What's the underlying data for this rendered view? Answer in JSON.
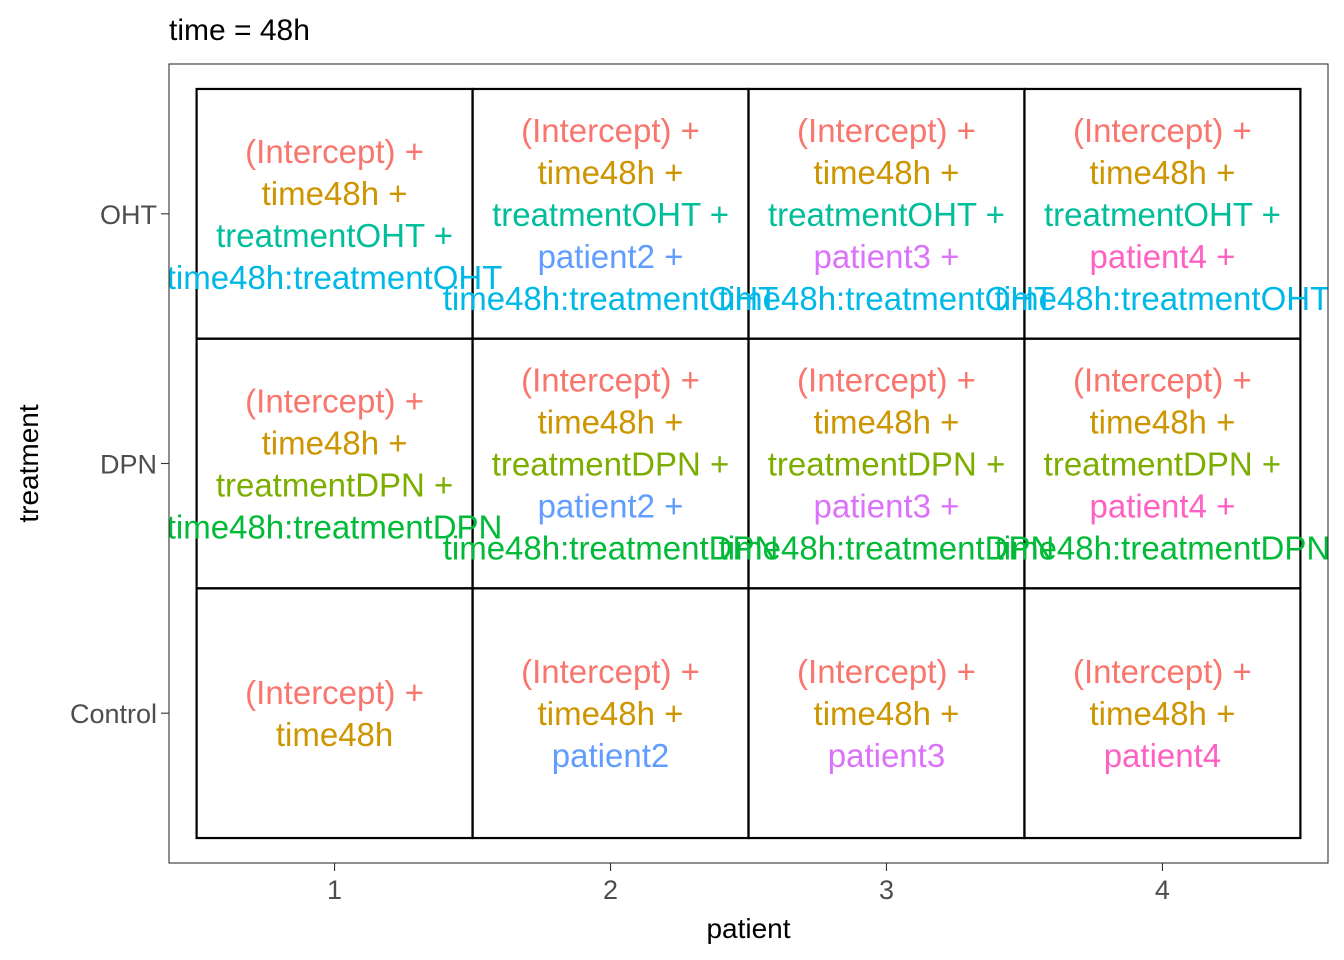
{
  "chart_data": {
    "type": "table",
    "title": "time = 48h",
    "xlabel": "patient",
    "ylabel": "treatment",
    "x_categories": [
      "1",
      "2",
      "3",
      "4"
    ],
    "y_categories": [
      "Control",
      "DPN",
      "OHT"
    ],
    "grid": false,
    "legend": "none",
    "term_colors": {
      "(Intercept)": "#F8766D",
      "time48h": "#CD9600",
      "treatmentOHT": "#00BE9A",
      "treatmentDPN": "#7CAE00",
      "patient2": "#619CFF",
      "patient3": "#DB72FB",
      "patient4": "#FF61C3",
      "time48h:treatmentOHT": "#00B8E7",
      "time48h:treatmentDPN": "#00BA38"
    },
    "cells": [
      {
        "patient": "1",
        "treatment": "OHT",
        "lines": [
          {
            "term": "(Intercept)",
            "text": "(Intercept) +"
          },
          {
            "term": "time48h",
            "text": "time48h +"
          },
          {
            "term": "treatmentOHT",
            "text": "treatmentOHT +"
          },
          {
            "term": "time48h:treatmentOHT",
            "text": "time48h:treatmentOHT"
          }
        ]
      },
      {
        "patient": "2",
        "treatment": "OHT",
        "lines": [
          {
            "term": "(Intercept)",
            "text": "(Intercept) +"
          },
          {
            "term": "time48h",
            "text": "time48h +"
          },
          {
            "term": "treatmentOHT",
            "text": "treatmentOHT +"
          },
          {
            "term": "patient2",
            "text": "patient2 +"
          },
          {
            "term": "time48h:treatmentOHT",
            "text": "time48h:treatmentOHT"
          }
        ]
      },
      {
        "patient": "3",
        "treatment": "OHT",
        "lines": [
          {
            "term": "(Intercept)",
            "text": "(Intercept) +"
          },
          {
            "term": "time48h",
            "text": "time48h +"
          },
          {
            "term": "treatmentOHT",
            "text": "treatmentOHT +"
          },
          {
            "term": "patient3",
            "text": "patient3 +"
          },
          {
            "term": "time48h:treatmentOHT",
            "text": "time48h:treatmentOHT"
          }
        ]
      },
      {
        "patient": "4",
        "treatment": "OHT",
        "lines": [
          {
            "term": "(Intercept)",
            "text": "(Intercept) +"
          },
          {
            "term": "time48h",
            "text": "time48h +"
          },
          {
            "term": "treatmentOHT",
            "text": "treatmentOHT +"
          },
          {
            "term": "patient4",
            "text": "patient4 +"
          },
          {
            "term": "time48h:treatmentOHT",
            "text": "time48h:treatmentOHT"
          }
        ]
      },
      {
        "patient": "1",
        "treatment": "DPN",
        "lines": [
          {
            "term": "(Intercept)",
            "text": "(Intercept) +"
          },
          {
            "term": "time48h",
            "text": "time48h +"
          },
          {
            "term": "treatmentDPN",
            "text": "treatmentDPN +"
          },
          {
            "term": "time48h:treatmentDPN",
            "text": "time48h:treatmentDPN"
          }
        ]
      },
      {
        "patient": "2",
        "treatment": "DPN",
        "lines": [
          {
            "term": "(Intercept)",
            "text": "(Intercept) +"
          },
          {
            "term": "time48h",
            "text": "time48h +"
          },
          {
            "term": "treatmentDPN",
            "text": "treatmentDPN +"
          },
          {
            "term": "patient2",
            "text": "patient2 +"
          },
          {
            "term": "time48h:treatmentDPN",
            "text": "time48h:treatmentDPN"
          }
        ]
      },
      {
        "patient": "3",
        "treatment": "DPN",
        "lines": [
          {
            "term": "(Intercept)",
            "text": "(Intercept) +"
          },
          {
            "term": "time48h",
            "text": "time48h +"
          },
          {
            "term": "treatmentDPN",
            "text": "treatmentDPN +"
          },
          {
            "term": "patient3",
            "text": "patient3 +"
          },
          {
            "term": "time48h:treatmentDPN",
            "text": "time48h:treatmentDPN"
          }
        ]
      },
      {
        "patient": "4",
        "treatment": "DPN",
        "lines": [
          {
            "term": "(Intercept)",
            "text": "(Intercept) +"
          },
          {
            "term": "time48h",
            "text": "time48h +"
          },
          {
            "term": "treatmentDPN",
            "text": "treatmentDPN +"
          },
          {
            "term": "patient4",
            "text": "patient4 +"
          },
          {
            "term": "time48h:treatmentDPN",
            "text": "time48h:treatmentDPN"
          }
        ]
      },
      {
        "patient": "1",
        "treatment": "Control",
        "lines": [
          {
            "term": "(Intercept)",
            "text": "(Intercept) +"
          },
          {
            "term": "time48h",
            "text": "time48h"
          }
        ]
      },
      {
        "patient": "2",
        "treatment": "Control",
        "lines": [
          {
            "term": "(Intercept)",
            "text": "(Intercept) +"
          },
          {
            "term": "time48h",
            "text": "time48h +"
          },
          {
            "term": "patient2",
            "text": "patient2"
          }
        ]
      },
      {
        "patient": "3",
        "treatment": "Control",
        "lines": [
          {
            "term": "(Intercept)",
            "text": "(Intercept) +"
          },
          {
            "term": "time48h",
            "text": "time48h +"
          },
          {
            "term": "patient3",
            "text": "patient3"
          }
        ]
      },
      {
        "patient": "4",
        "treatment": "Control",
        "lines": [
          {
            "term": "(Intercept)",
            "text": "(Intercept) +"
          },
          {
            "term": "time48h",
            "text": "time48h +"
          },
          {
            "term": "patient4",
            "text": "patient4"
          }
        ]
      }
    ]
  }
}
